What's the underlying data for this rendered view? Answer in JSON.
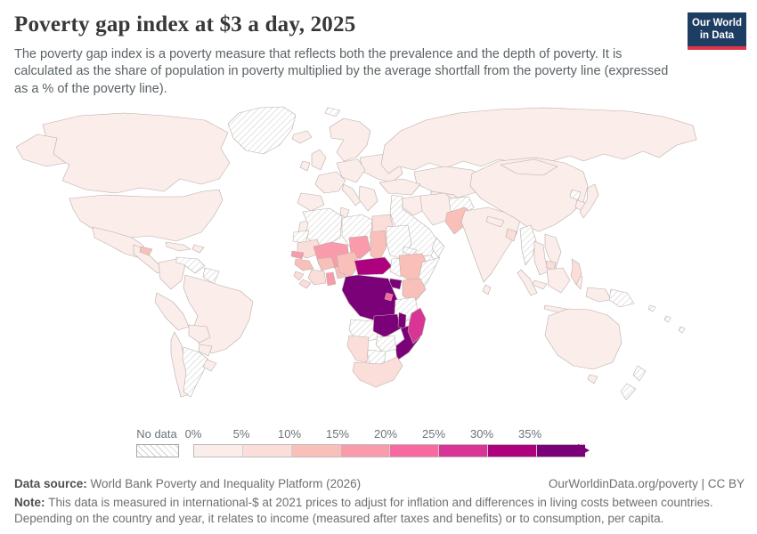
{
  "header": {
    "title": "Poverty gap index at $3 a day, 2025",
    "subtitle": "The poverty gap index is a poverty measure that reflects both the prevalence and the depth of poverty. It is calculated as the share of population in poverty multiplied by the average shortfall from the poverty line (expressed as a % of the poverty line).",
    "logo": {
      "line1": "Our World",
      "line2": "in Data",
      "background": "#1d3d63",
      "accent_bar": "#e0354b"
    }
  },
  "legend": {
    "no_data_label": "No data",
    "tick_labels": [
      "0%",
      "5%",
      "10%",
      "15%",
      "20%",
      "25%",
      "30%",
      "35%"
    ]
  },
  "footer": {
    "data_source_label": "Data source:",
    "data_source": "World Bank Poverty and Inequality Platform (2026)",
    "link": "OurWorldinData.org/poverty | CC BY",
    "note_label": "Note:",
    "note": "This data is measured in international-$ at 2021 prices to adjust for inflation and differences in living costs between countries. Depending on the country and year, it relates to income (measured after taxes and benefits) or to consumption, per capita."
  },
  "chart_data": {
    "type": "choropleth",
    "title": "Poverty gap index at $3 a day, 2025",
    "metric": "Poverty gap index at $3 a day",
    "year": 2025,
    "unit": "%",
    "legend_position": "bottom",
    "bins": [
      {
        "label": "0%",
        "range": [
          0,
          5
        ],
        "color": "#fbede9"
      },
      {
        "label": "5%",
        "range": [
          5,
          10
        ],
        "color": "#fbdeda"
      },
      {
        "label": "10%",
        "range": [
          10,
          15
        ],
        "color": "#f8c0b9"
      },
      {
        "label": "15%",
        "range": [
          15,
          20
        ],
        "color": "#f99bab"
      },
      {
        "label": "20%",
        "range": [
          20,
          25
        ],
        "color": "#f7699f"
      },
      {
        "label": "25%",
        "range": [
          25,
          30
        ],
        "color": "#d93594"
      },
      {
        "label": "30%",
        "range": [
          30,
          35
        ],
        "color": "#ae017e"
      },
      {
        "label": "35%",
        "range": [
          35,
          null
        ],
        "color": "#7a0177"
      }
    ],
    "no_data": {
      "label": "No data",
      "style": "hatched"
    },
    "country_bins": {
      "greenland": "nodata",
      "svalbard": "nodata",
      "venezuela": "nodata",
      "guianas": "nodata",
      "argentina": "nodata",
      "algeria": "nodata",
      "libya": "nodata",
      "western_sahara": "nodata",
      "sudan": "nodata",
      "south_sudan": "nodata",
      "eritrea": "nodata",
      "somalia": "nodata",
      "tanzania": "nodata",
      "angola": "nodata",
      "zimbabwe": "nodata",
      "botswana": "nodata",
      "saudi_levant": "nodata",
      "yemen": "nodata",
      "oman": "nodata",
      "turkmenistan": "nodata",
      "afghanistan": "nodata",
      "myanmar": "nodata",
      "north_korea": "nodata",
      "papua_new_guinea": "nodata",
      "new_zealand_north": "nodata",
      "new_zealand_south": "nodata",
      "pacific_1": "nodata",
      "pacific_2": "nodata",
      "pacific_3": "nodata",
      "alaska": 0,
      "canada": 0,
      "usa": 0,
      "mexico": 0,
      "central_america": 0,
      "cuba": 0,
      "hispaniola": 0,
      "colombia": 0,
      "peru": 0,
      "brazil": 0,
      "bolivia": 0,
      "paraguay": 0,
      "chile": 0,
      "uruguay": 0,
      "iceland": 0,
      "united_kingdom": 0,
      "ireland": 0,
      "scandinavia": 0,
      "central_europe": 0,
      "eastern_europe": 0,
      "france": 0,
      "iberia": 0,
      "italy": 0,
      "balkans": 0,
      "turkey": 0,
      "caucasus": 0,
      "russia": 0,
      "kazakhstan": 0,
      "uzbekistan": 0,
      "iraq": 0,
      "iran": 0,
      "india": 0,
      "nepal": 0,
      "sri_lanka": 0,
      "china": 0,
      "mongolia": 0,
      "south_korea": 0,
      "japan": 0,
      "thailand": 0,
      "vietnam_laos": 0,
      "malaysia": 0,
      "sumatra": 0,
      "java": 0,
      "borneo": 0,
      "sulawesi": 0,
      "west_papua": 0,
      "australia": 0,
      "tasmania": 0,
      "morocco": 0,
      "tunisia": 0,
      "egypt": 1,
      "mauritania": 1,
      "sierra_leone": 1,
      "liberia": 1,
      "ivory_coast": 1,
      "namibia": 1,
      "south_africa": 1,
      "bangladesh": 1,
      "cambodia": 1,
      "philippines": 1,
      "honduras": 2,
      "pakistan": 2,
      "guinea": 2,
      "burkina_faso": 2,
      "togo_benin": 2,
      "nigeria": 2,
      "chad": 2,
      "ethiopia": 2,
      "kenya": 2,
      "senegal": 3,
      "mali": 3,
      "niger": 3,
      "ghana": 3,
      "rwanda_burundi": 4,
      "madagascar": 5,
      "cameroon_car": 6,
      "drc_congo": 7,
      "uganda": 7,
      "zambia": 7,
      "malawi": 7,
      "mozambique": 7
    }
  }
}
